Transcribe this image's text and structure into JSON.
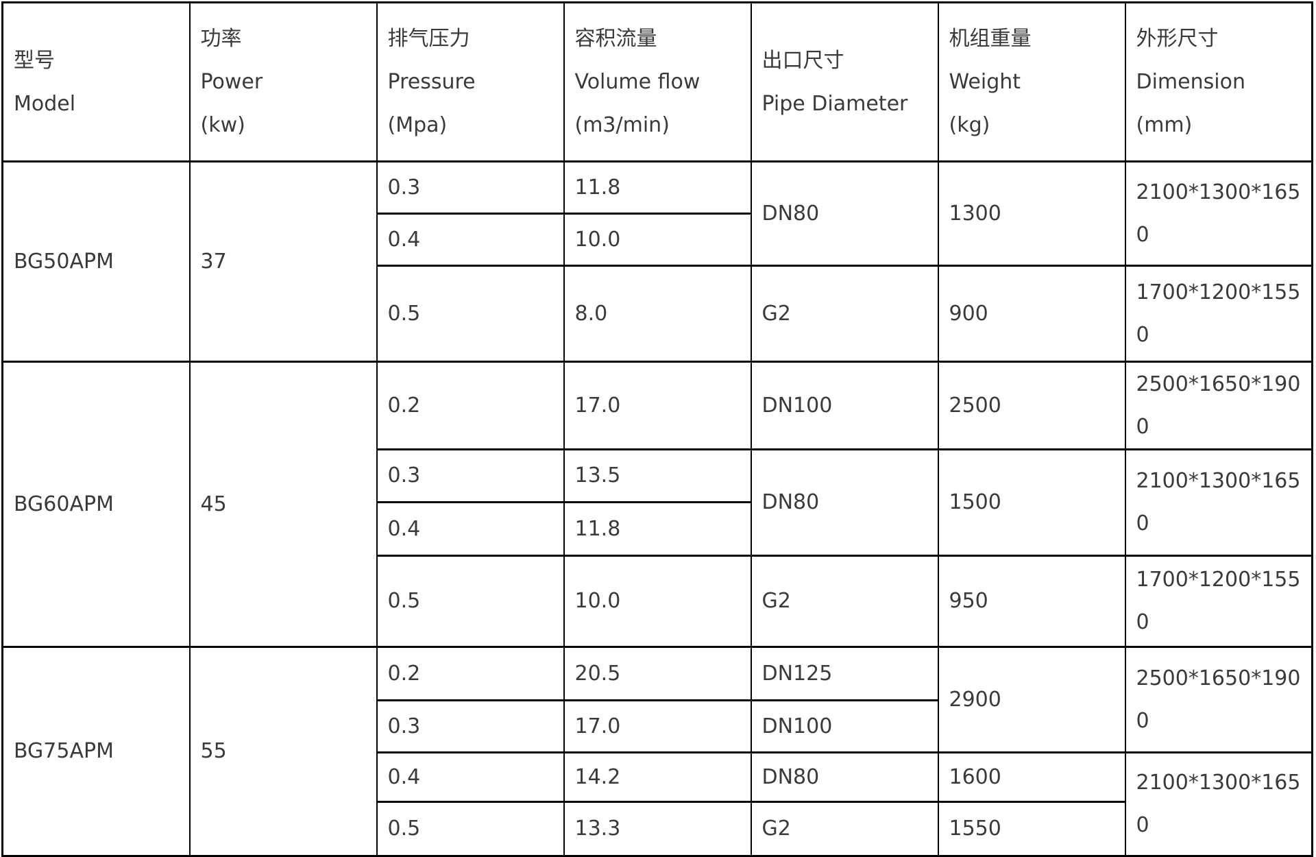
{
  "header": {
    "model": {
      "zh": "型号",
      "en": "Model"
    },
    "power": {
      "zh": "功率",
      "en": "Power",
      "unit": "(kw)"
    },
    "pressure": {
      "zh": "排气压力",
      "en": "Pressure",
      "unit": "(Mpa)"
    },
    "flow": {
      "zh": "容积流量",
      "en": "Volume flow",
      "unit": "(m3/min)"
    },
    "pipe": {
      "zh": "出口尺寸",
      "en": "Pipe Diameter"
    },
    "weight": {
      "zh": "机组重量",
      "en": "Weight",
      "unit": "(kg)"
    },
    "dimension": {
      "zh": "外形尺寸",
      "en": "Dimension",
      "unit": "(mm)"
    }
  },
  "rows": [
    {
      "model": "BG50APM",
      "power": "37",
      "pressure": "0.3",
      "flow": "11.8",
      "pipe": "DN80",
      "weight": "1300",
      "dim": "2100*1300*1650"
    },
    {
      "pressure": "0.4",
      "flow": "10.0"
    },
    {
      "pressure": "0.5",
      "flow": "8.0",
      "pipe": "G2",
      "weight": "900",
      "dim": "1700*1200*1550"
    },
    {
      "model": "BG60APM",
      "power": "45",
      "pressure": "0.2",
      "flow": "17.0",
      "pipe": "DN100",
      "weight": "2500",
      "dim": "2500*1650*1900"
    },
    {
      "pressure": "0.3",
      "flow": "13.5",
      "pipe": "DN80",
      "weight": "1500",
      "dim": "2100*1300*1650"
    },
    {
      "pressure": "0.4",
      "flow": "11.8"
    },
    {
      "pressure": "0.5",
      "flow": "10.0",
      "pipe": "G2",
      "weight": "950",
      "dim": "1700*1200*1550"
    },
    {
      "model": "BG75APM",
      "power": "55",
      "pressure": "0.2",
      "flow": "20.5",
      "pipe": "DN125",
      "weight": "2900",
      "dim": "2500*1650*1900"
    },
    {
      "pressure": "0.3",
      "flow": "17.0",
      "pipe": "DN100"
    },
    {
      "pressure": "0.4",
      "flow": "14.2",
      "pipe": "DN80",
      "weight": "1600",
      "dim": "2100*1300*1650"
    },
    {
      "pressure": "0.5",
      "flow": "13.3",
      "pipe": "G2",
      "weight": "1550"
    }
  ],
  "colors": {
    "border": "#000000",
    "text": "#3a3a3a",
    "background": "#ffffff"
  }
}
